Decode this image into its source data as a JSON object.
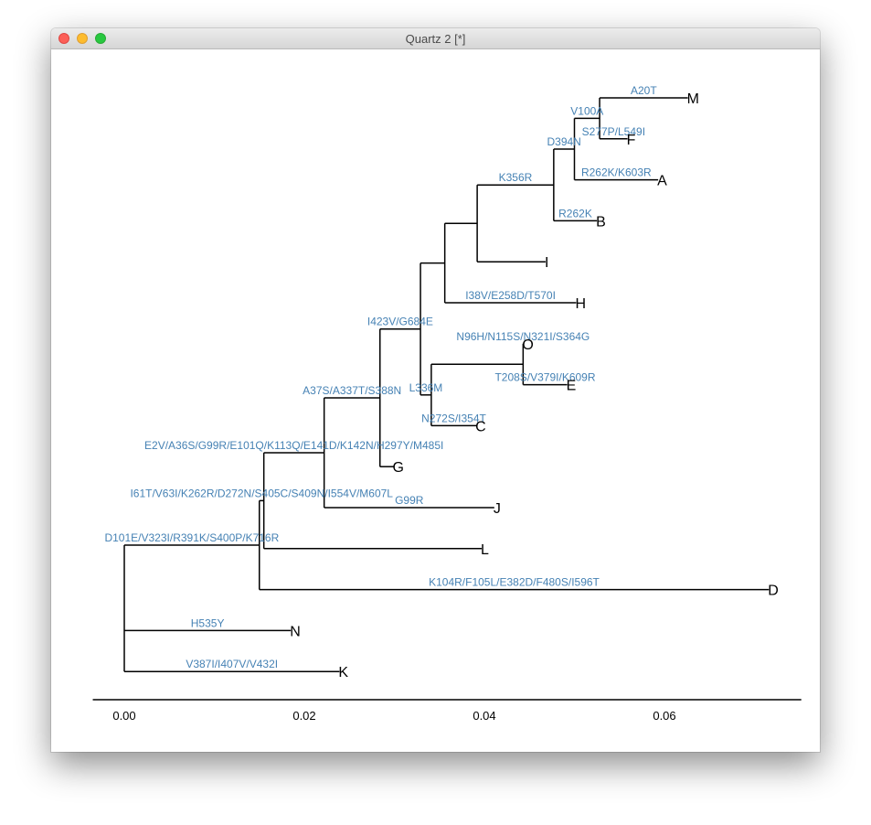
{
  "window": {
    "title": "Quartz 2 [*]",
    "buttons": [
      "close",
      "minimize",
      "zoom"
    ]
  },
  "chart_data": {
    "type": "phylogenetic-tree",
    "x_axis": {
      "ticks": [
        "0.00",
        "0.02",
        "0.04",
        "0.06"
      ],
      "tick_values": [
        0,
        0.02,
        0.04,
        0.06
      ],
      "range": [
        -0.0035,
        0.0752
      ]
    },
    "nodes": [
      {
        "id": "root",
        "x": 0.0,
        "parent": null,
        "mutations": ""
      },
      {
        "id": "n1",
        "x": 0.015,
        "parent": "root",
        "mutations": "D101E/V323I/R391K/S400P/K716R"
      },
      {
        "id": "n2",
        "x": 0.0155,
        "parent": "n1",
        "mutations": "I61T/V63I/K262R/D272N/S405C/S409N/I554V/M607L"
      },
      {
        "id": "n3",
        "x": 0.0222,
        "parent": "n2",
        "mutations": "E2V/A36S/G99R/E101Q/K113Q/E141D/K142N/H297Y/M485I"
      },
      {
        "id": "n4",
        "x": 0.0284,
        "parent": "n3",
        "mutations": "A37S/A337T/S388N"
      },
      {
        "id": "n5",
        "x": 0.0329,
        "parent": "n4",
        "mutations": "I423V/G684E"
      },
      {
        "id": "n6",
        "x": 0.0356,
        "parent": "n5",
        "mutations": ""
      },
      {
        "id": "n7",
        "x": 0.0392,
        "parent": "n6",
        "mutations": ""
      },
      {
        "id": "n8",
        "x": 0.0477,
        "parent": "n7",
        "mutations": "K356R"
      },
      {
        "id": "n9",
        "x": 0.05,
        "parent": "n8",
        "mutations": "D394N"
      },
      {
        "id": "n10",
        "x": 0.0528,
        "parent": "n9",
        "mutations": "V100A"
      },
      {
        "id": "n11",
        "x": 0.0341,
        "parent": "n5",
        "mutations": "L336M"
      },
      {
        "id": "n12",
        "x": 0.0443,
        "parent": "n11",
        "mutations": ""
      }
    ],
    "tips": [
      {
        "label": "M",
        "x": 0.0626,
        "parent": "n10",
        "mutations": "A20T"
      },
      {
        "label": "F",
        "x": 0.0559,
        "parent": "n10",
        "mutations": "S277P/L549I"
      },
      {
        "label": "A",
        "x": 0.0593,
        "parent": "n9",
        "mutations": "R262K/K603R"
      },
      {
        "label": "B",
        "x": 0.0525,
        "parent": "n8",
        "mutations": "R262K"
      },
      {
        "label": "I",
        "x": 0.0468,
        "parent": "n7",
        "mutations": ""
      },
      {
        "label": "H",
        "x": 0.0502,
        "parent": "n6",
        "mutations": "I38V/E258D/T570I"
      },
      {
        "label": "O",
        "x": 0.0443,
        "parent": "n12",
        "mutations": "N96H/N115S/N321I/S364G"
      },
      {
        "label": "E",
        "x": 0.0492,
        "parent": "n12",
        "mutations": "T208S/V379I/K609R"
      },
      {
        "label": "C",
        "x": 0.0391,
        "parent": "n11",
        "mutations": "N272S/I354T"
      },
      {
        "label": "G",
        "x": 0.0299,
        "parent": "n4",
        "mutations": ""
      },
      {
        "label": "J",
        "x": 0.0411,
        "parent": "n3",
        "mutations": "G99R"
      },
      {
        "label": "L",
        "x": 0.0397,
        "parent": "n2",
        "mutations": ""
      },
      {
        "label": "D",
        "x": 0.0716,
        "parent": "n1",
        "mutations": "K104R/F105L/E382D/F480S/I596T"
      },
      {
        "label": "N",
        "x": 0.0185,
        "parent": "root",
        "mutations": "H535Y"
      },
      {
        "label": "K",
        "x": 0.0239,
        "parent": "root",
        "mutations": "V387I/I407V/V432I"
      }
    ]
  }
}
